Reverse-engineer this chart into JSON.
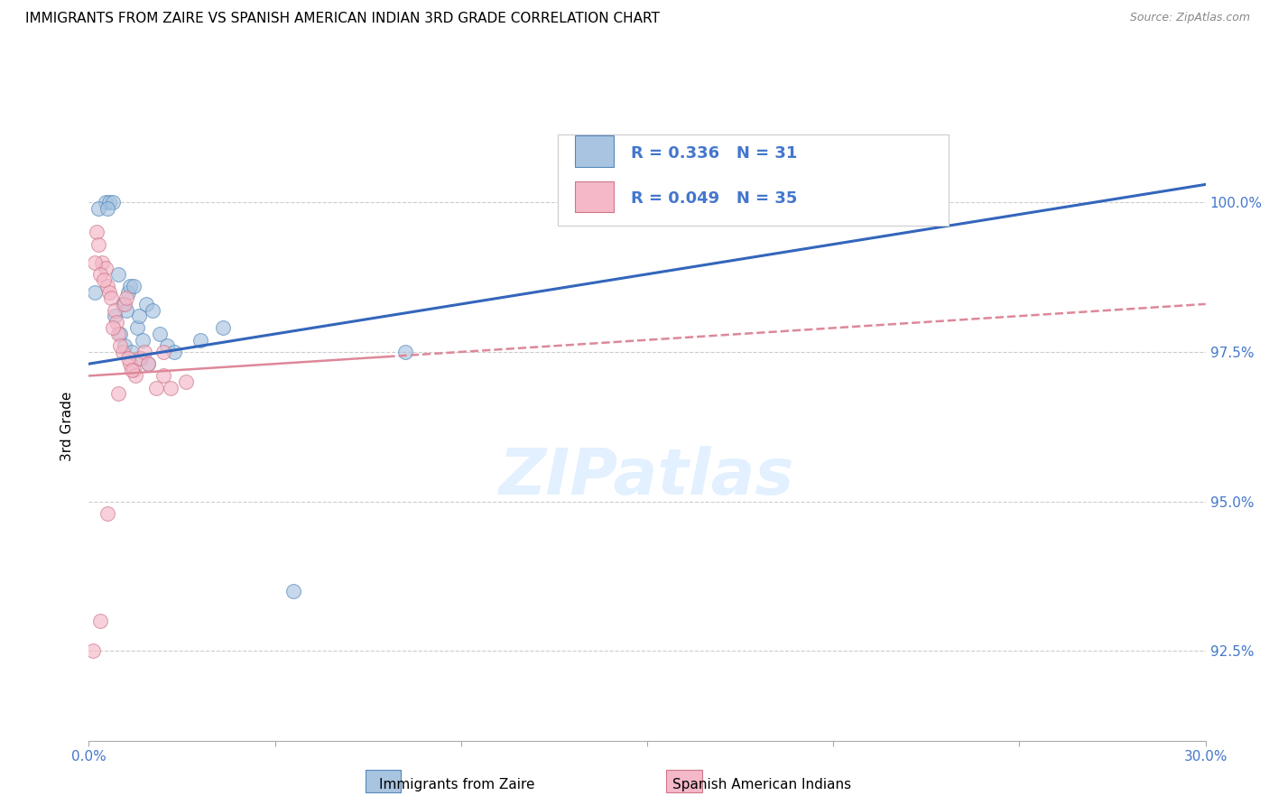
{
  "title": "IMMIGRANTS FROM ZAIRE VS SPANISH AMERICAN INDIAN 3RD GRADE CORRELATION CHART",
  "source": "Source: ZipAtlas.com",
  "ylabel": "3rd Grade",
  "yticks": [
    92.5,
    95.0,
    97.5,
    100.0
  ],
  "ytick_labels": [
    "92.5%",
    "95.0%",
    "97.5%",
    "100.0%"
  ],
  "xmin": 0.0,
  "xmax": 30.0,
  "ymin": 91.0,
  "ymax": 101.5,
  "blue_R": 0.336,
  "blue_N": 31,
  "pink_R": 0.049,
  "pink_N": 35,
  "legend_label_blue": "Immigrants from Zaire",
  "legend_label_pink": "Spanish American Indians",
  "blue_color": "#a8c4e0",
  "pink_color": "#f4b8c8",
  "blue_edge_color": "#5588bb",
  "pink_edge_color": "#cc7788",
  "blue_line_color": "#3366bb",
  "pink_line_color": "#dd8899",
  "blue_scatter_x": [
    0.15,
    0.45,
    0.55,
    0.65,
    0.8,
    0.9,
    1.0,
    1.05,
    1.1,
    1.2,
    1.3,
    1.35,
    1.45,
    1.55,
    1.7,
    1.9,
    2.1,
    2.3,
    3.6,
    5.5,
    8.5,
    20.5,
    0.25,
    0.5,
    0.7,
    0.85,
    0.95,
    1.15,
    1.4,
    1.6,
    3.0
  ],
  "blue_scatter_y": [
    98.5,
    100.0,
    100.0,
    100.0,
    98.8,
    98.3,
    98.2,
    98.5,
    98.6,
    98.6,
    97.9,
    98.1,
    97.7,
    98.3,
    98.2,
    97.8,
    97.6,
    97.5,
    97.9,
    93.5,
    97.5,
    100.2,
    99.9,
    99.9,
    98.1,
    97.8,
    97.6,
    97.5,
    97.4,
    97.3,
    97.7
  ],
  "pink_scatter_x": [
    0.1,
    0.2,
    0.25,
    0.35,
    0.45,
    0.5,
    0.55,
    0.6,
    0.7,
    0.75,
    0.8,
    0.9,
    0.95,
    1.0,
    1.1,
    1.2,
    1.25,
    1.35,
    1.5,
    1.6,
    1.8,
    2.0,
    2.2,
    2.6,
    0.15,
    0.3,
    0.4,
    0.65,
    0.85,
    1.05,
    1.15,
    0.8,
    2.0,
    0.5,
    0.3
  ],
  "pink_scatter_y": [
    92.5,
    99.5,
    99.3,
    99.0,
    98.9,
    98.6,
    98.5,
    98.4,
    98.2,
    98.0,
    97.8,
    97.5,
    98.3,
    98.4,
    97.3,
    97.2,
    97.1,
    97.4,
    97.5,
    97.3,
    96.9,
    97.5,
    96.9,
    97.0,
    99.0,
    98.8,
    98.7,
    97.9,
    97.6,
    97.4,
    97.2,
    96.8,
    97.1,
    94.8,
    93.0
  ],
  "blue_line_x0": 0.0,
  "blue_line_x1": 30.0,
  "blue_line_y0": 97.3,
  "blue_line_y1": 100.3,
  "pink_line_x0": 0.0,
  "pink_line_x1": 30.0,
  "pink_line_y0": 97.1,
  "pink_line_y1": 98.3,
  "pink_solid_end_x": 8.0
}
